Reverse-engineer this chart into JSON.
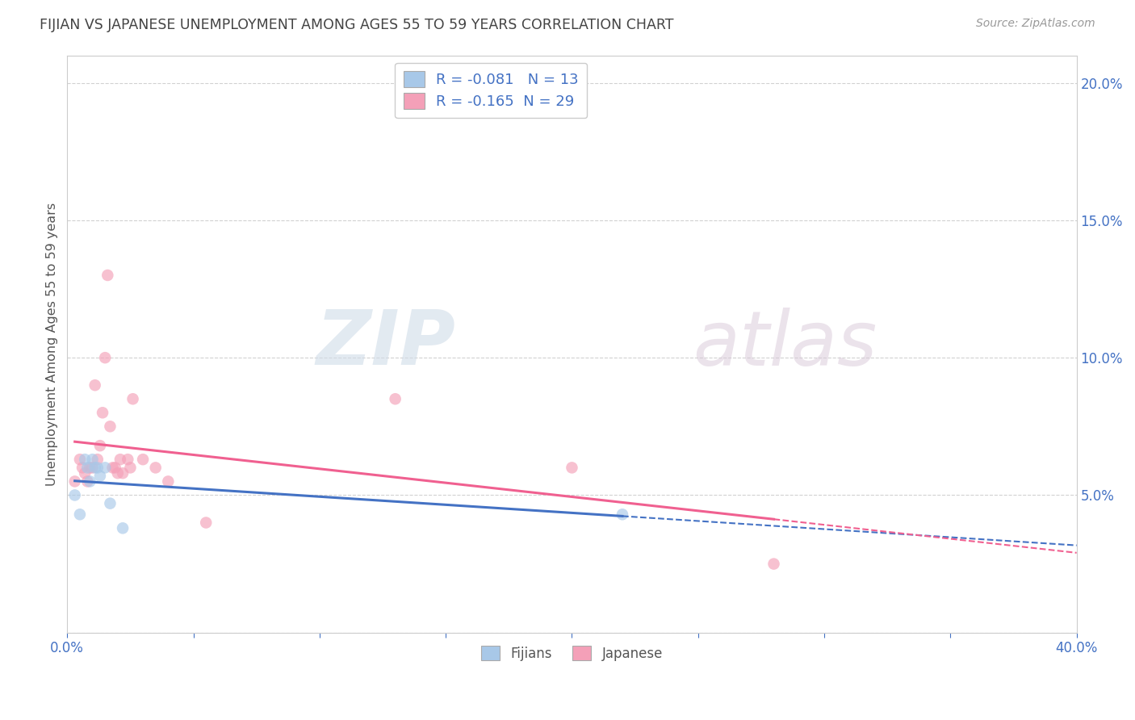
{
  "title": "FIJIAN VS JAPANESE UNEMPLOYMENT AMONG AGES 55 TO 59 YEARS CORRELATION CHART",
  "source": "Source: ZipAtlas.com",
  "ylabel": "Unemployment Among Ages 55 to 59 years",
  "xlim": [
    0.0,
    0.4
  ],
  "ylim": [
    0.0,
    0.21
  ],
  "xticks": [
    0.0,
    0.05,
    0.1,
    0.15,
    0.2,
    0.25,
    0.3,
    0.35,
    0.4
  ],
  "xtick_labels": [
    "0.0%",
    "",
    "",
    "",
    "",
    "",
    "",
    "",
    "40.0%"
  ],
  "yticks": [
    0.0,
    0.05,
    0.1,
    0.15,
    0.2
  ],
  "ytick_labels_right": [
    "",
    "5.0%",
    "10.0%",
    "15.0%",
    "20.0%"
  ],
  "fijian_x": [
    0.003,
    0.005,
    0.007,
    0.008,
    0.009,
    0.01,
    0.011,
    0.012,
    0.013,
    0.015,
    0.017,
    0.022,
    0.22
  ],
  "fijian_y": [
    0.05,
    0.043,
    0.063,
    0.06,
    0.055,
    0.063,
    0.06,
    0.06,
    0.057,
    0.06,
    0.047,
    0.038,
    0.043
  ],
  "japanese_x": [
    0.003,
    0.005,
    0.006,
    0.007,
    0.008,
    0.009,
    0.01,
    0.011,
    0.012,
    0.013,
    0.014,
    0.015,
    0.016,
    0.017,
    0.018,
    0.019,
    0.02,
    0.021,
    0.022,
    0.024,
    0.025,
    0.026,
    0.03,
    0.035,
    0.04,
    0.055,
    0.13,
    0.2,
    0.28
  ],
  "japanese_y": [
    0.055,
    0.063,
    0.06,
    0.058,
    0.055,
    0.06,
    0.06,
    0.09,
    0.063,
    0.068,
    0.08,
    0.1,
    0.13,
    0.075,
    0.06,
    0.06,
    0.058,
    0.063,
    0.058,
    0.063,
    0.06,
    0.085,
    0.063,
    0.06,
    0.055,
    0.04,
    0.085,
    0.06,
    0.025
  ],
  "fijian_color": "#a8c8e8",
  "japanese_color": "#f4a0b8",
  "fijian_line_color": "#4472C4",
  "japanese_line_color": "#F06090",
  "fijian_R": -0.081,
  "fijian_N": 13,
  "japanese_R": -0.165,
  "japanese_N": 29,
  "legend_label_fijian": "Fijians",
  "legend_label_japanese": "Japanese",
  "watermark_zip": "ZIP",
  "watermark_atlas": "atlas",
  "background_color": "#ffffff",
  "grid_color": "#cccccc",
  "title_color": "#444444",
  "axis_label_color": "#555555",
  "tick_color_right": "#4472C4",
  "tick_color_x": "#4472C4",
  "marker_size": 110,
  "marker_alpha": 0.65
}
